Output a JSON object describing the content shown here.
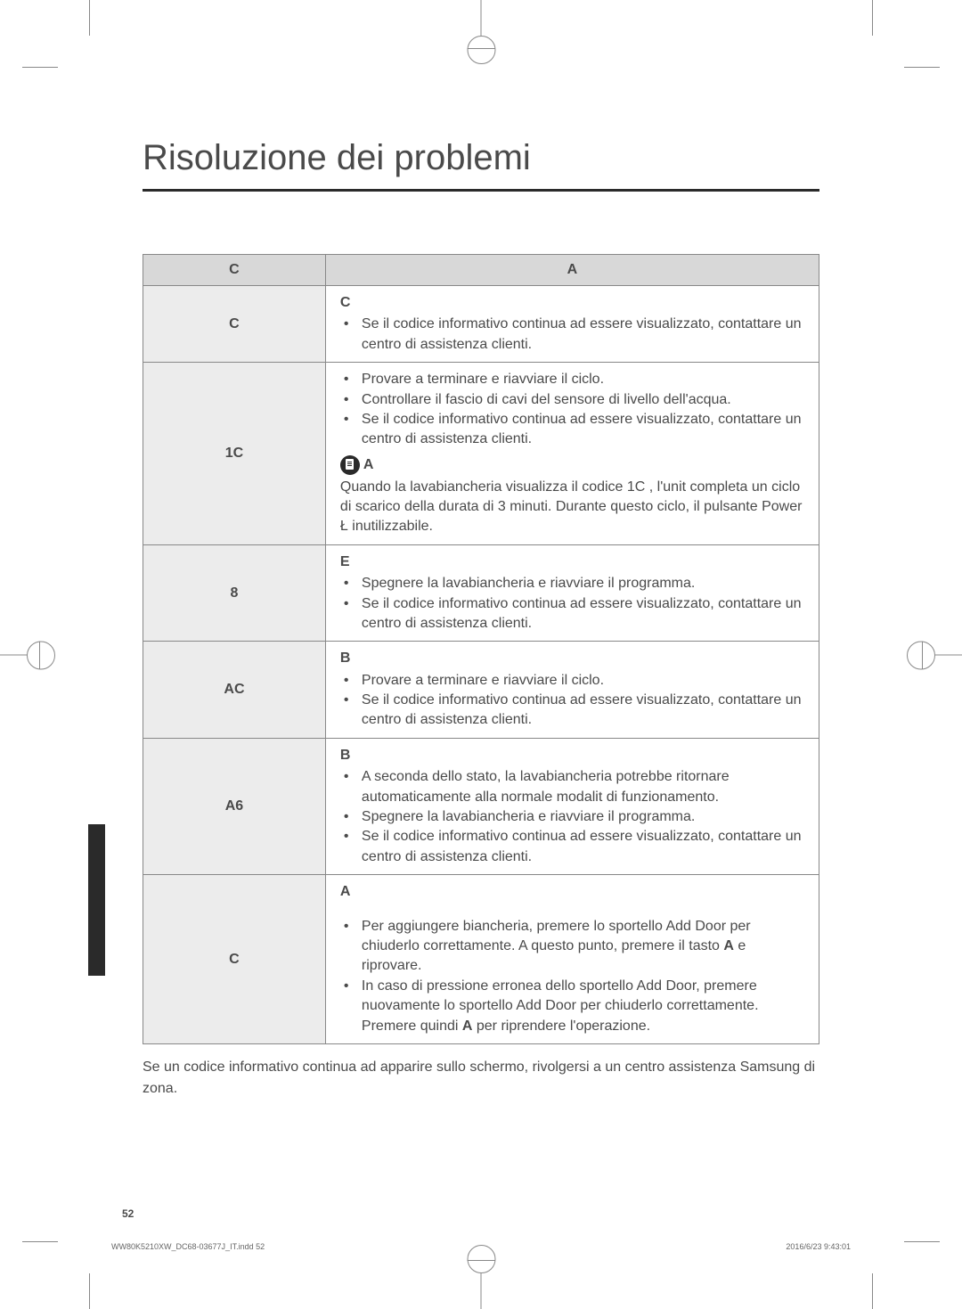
{
  "page": {
    "title": "Risoluzione dei problemi",
    "page_number": "52",
    "footer_file": "WW80K5210XW_DC68-03677J_IT.indd   52",
    "footer_date": "2016/6/23   9:43:01"
  },
  "table": {
    "header_left": "C",
    "header_right": "A",
    "rows": [
      {
        "code": "C",
        "action_header": "C",
        "bullets": [
          "Se il codice informativo continua ad essere visualizzato, contattare un centro di assistenza clienti."
        ]
      },
      {
        "code": "1C",
        "action_header": "",
        "bullets": [
          "Provare a terminare e riavviare il ciclo.",
          "Controllare il fascio di cavi del sensore di livello dell'acqua.",
          "Se il codice informativo continua ad essere visualizzato, contattare un centro di assistenza clienti."
        ],
        "note_label": "A",
        "note_text": "Quando la lavabiancheria visualizza il codice  1C , l'unit  completa un ciclo di scarico della durata di 3 minuti. Durante questo ciclo, il pulsante Power Ł inutilizzabile."
      },
      {
        "code": "8",
        "action_header": "E",
        "bullets": [
          "Spegnere la lavabiancheria e riavviare il programma.",
          "Se il codice informativo continua ad essere visualizzato, contattare un centro di assistenza clienti."
        ]
      },
      {
        "code": "AC",
        "action_header": "B",
        "bullets": [
          "Provare a terminare e riavviare il ciclo.",
          "Se il codice informativo continua ad essere visualizzato, contattare un centro di assistenza clienti."
        ]
      },
      {
        "code": "A6",
        "action_header": "B",
        "bullets": [
          "A seconda dello stato, la lavabiancheria potrebbe ritornare automaticamente alla normale modalit  di funzionamento.",
          "Spegnere la lavabiancheria e riavviare il programma.",
          "Se il codice informativo continua ad essere visualizzato, contattare un centro di assistenza clienti."
        ]
      },
      {
        "code": "C",
        "action_header": "A",
        "pre_spacer": true,
        "bullets_html": [
          "Per aggiungere biancheria, premere lo sportello Add Door per chiuderlo correttamente. A questo punto, premere il tasto <b>A</b> e riprovare.",
          "In caso di pressione erronea dello sportello Add Door, premere nuovamente lo sportello Add Door per chiuderlo correttamente. Premere quindi <b>A</b> per riprendere l'operazione."
        ]
      }
    ]
  },
  "footer_text": "Se un codice informativo continua ad apparire sullo schermo, rivolgersi a un centro assistenza Samsung di zona."
}
